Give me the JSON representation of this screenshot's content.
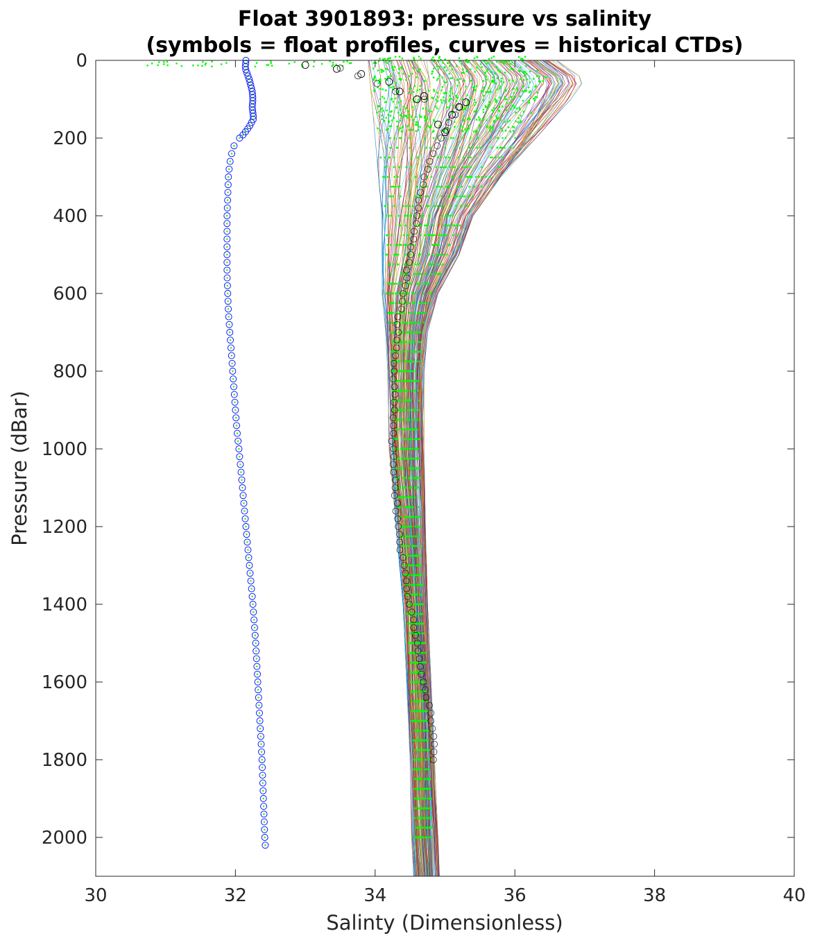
{
  "chart_data": {
    "type": "line",
    "title": "Float 3901893: pressure vs salinity",
    "subtitle": "(symbols = float profiles, curves = historical CTDs)",
    "xlabel": "Salinty (Dimensionless)",
    "ylabel": "Pressure (dBar)",
    "xlim": [
      30,
      40
    ],
    "ylim": [
      0,
      2100
    ],
    "y_reversed": true,
    "grid": false,
    "xticks": [
      "30",
      "32",
      "34",
      "36",
      "38",
      "40"
    ],
    "yticks": [
      "0",
      "200",
      "400",
      "600",
      "800",
      "1000",
      "1200",
      "1400",
      "1600",
      "1800",
      "2000"
    ],
    "colors": {
      "float_points": "#00ff00",
      "float_profile_blue": "#0000ff",
      "float_profile_black": "#000000",
      "ctd_palette": [
        "#0072bd",
        "#d95319",
        "#edb120",
        "#7e2f8e",
        "#77ac30",
        "#4dbeee",
        "#a2142f"
      ]
    },
    "series": [
      {
        "kind": "float_profile_outlier",
        "color": "#0000ff",
        "pressure": [
          0,
          20,
          50,
          80,
          100,
          120,
          150,
          170,
          190,
          200,
          220,
          250,
          280,
          300,
          350,
          400,
          450,
          500,
          550,
          600,
          650,
          700,
          750,
          800,
          850,
          900,
          950,
          1000,
          1100,
          1200,
          1300,
          1400,
          1500,
          1600,
          1700,
          1800,
          1900,
          2000,
          2030
        ],
        "salinity": [
          32.15,
          32.14,
          32.2,
          32.24,
          32.25,
          32.24,
          32.26,
          32.2,
          32.12,
          32.06,
          31.98,
          31.93,
          31.91,
          31.9,
          31.89,
          31.88,
          31.88,
          31.88,
          31.88,
          31.89,
          31.9,
          31.92,
          31.94,
          31.96,
          31.98,
          32.0,
          32.02,
          32.05,
          32.1,
          32.15,
          32.2,
          32.25,
          32.29,
          32.32,
          32.35,
          32.38,
          32.4,
          32.42,
          32.43
        ]
      },
      {
        "kind": "float_profile_mean",
        "color": "#000000",
        "pressure": [
          20,
          50,
          80,
          100,
          120,
          150,
          180,
          200,
          250,
          300,
          350,
          400,
          450,
          500,
          550,
          600,
          650,
          700,
          800,
          900,
          1000,
          1100,
          1200,
          1300,
          1400,
          1500,
          1600,
          1700,
          1800
        ],
        "salinity": [
          33.5,
          33.9,
          34.3,
          34.7,
          35.2,
          35.1,
          35.0,
          34.95,
          34.8,
          34.7,
          34.65,
          34.6,
          34.55,
          34.5,
          34.45,
          34.4,
          34.35,
          34.32,
          34.28,
          34.26,
          34.25,
          34.28,
          34.33,
          34.4,
          34.5,
          34.6,
          34.7,
          34.8,
          34.85
        ]
      },
      {
        "kind": "ctd_envelope_left",
        "pressure": [
          0,
          100,
          200,
          300,
          400,
          500,
          600,
          700,
          800,
          1000,
          1200,
          1400,
          1600,
          1800,
          2000,
          2100
        ],
        "salinity": [
          33.9,
          33.95,
          34.0,
          34.05,
          34.1,
          34.1,
          34.1,
          34.15,
          34.18,
          34.2,
          34.3,
          34.4,
          34.45,
          34.5,
          34.52,
          34.55
        ]
      },
      {
        "kind": "ctd_envelope_right",
        "pressure": [
          0,
          50,
          100,
          200,
          300,
          400,
          500,
          600,
          700,
          800,
          1000,
          1200,
          1400,
          1600,
          1800,
          2000,
          2100
        ],
        "salinity": [
          36.6,
          37.0,
          36.8,
          36.3,
          35.8,
          35.4,
          35.2,
          34.9,
          34.75,
          34.7,
          34.7,
          34.72,
          34.75,
          34.8,
          34.85,
          34.9,
          34.92
        ]
      }
    ]
  }
}
